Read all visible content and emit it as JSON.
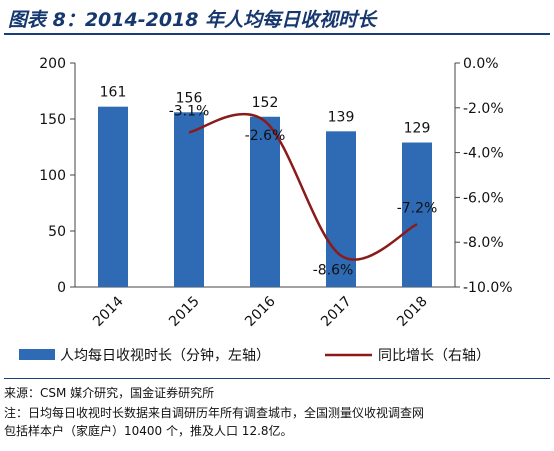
{
  "header": {
    "title": "图表 8：2014-2018 年人均每日收视时长"
  },
  "chart_data": {
    "type": "bar",
    "categories": [
      "2014",
      "2015",
      "2016",
      "2017",
      "2018"
    ],
    "series": [
      {
        "name": "人均每日收视时长（分钟，左轴）",
        "type": "bar",
        "axis": "left",
        "values": [
          161,
          156,
          152,
          139,
          129
        ],
        "labels": [
          "161",
          "156",
          "152",
          "139",
          "129"
        ],
        "color": "#2f6bb5"
      },
      {
        "name": "同比增长（右轴）",
        "type": "line",
        "axis": "right",
        "values": [
          null,
          -3.1,
          -2.6,
          -8.6,
          -7.2
        ],
        "labels": [
          "",
          "-3.1%",
          "-2.6%",
          "-8.6%",
          "-7.2%"
        ],
        "color": "#8b1a1a"
      }
    ],
    "y_left": {
      "min": 0,
      "max": 200,
      "ticks": [
        "0",
        "50",
        "100",
        "150",
        "200"
      ],
      "tick_values": [
        0,
        50,
        100,
        150,
        200
      ]
    },
    "y_right": {
      "min": -10,
      "max": 0,
      "ticks": [
        "-10.0%",
        "-8.0%",
        "-6.0%",
        "-4.0%",
        "-2.0%",
        "0.0%"
      ],
      "tick_values": [
        -10,
        -8,
        -6,
        -4,
        -2,
        0
      ]
    },
    "grid": false,
    "legend_position": "bottom"
  },
  "footer": {
    "source": "来源：CSM 媒介研究，国金证券研究所",
    "note_line1": "注：日均每日收视时长数据来自调研历年所有调查城市，全国测量仪收视调查网",
    "note_line2": "包括样本户（家庭户）10400 个，推及人口 12.8亿。"
  }
}
